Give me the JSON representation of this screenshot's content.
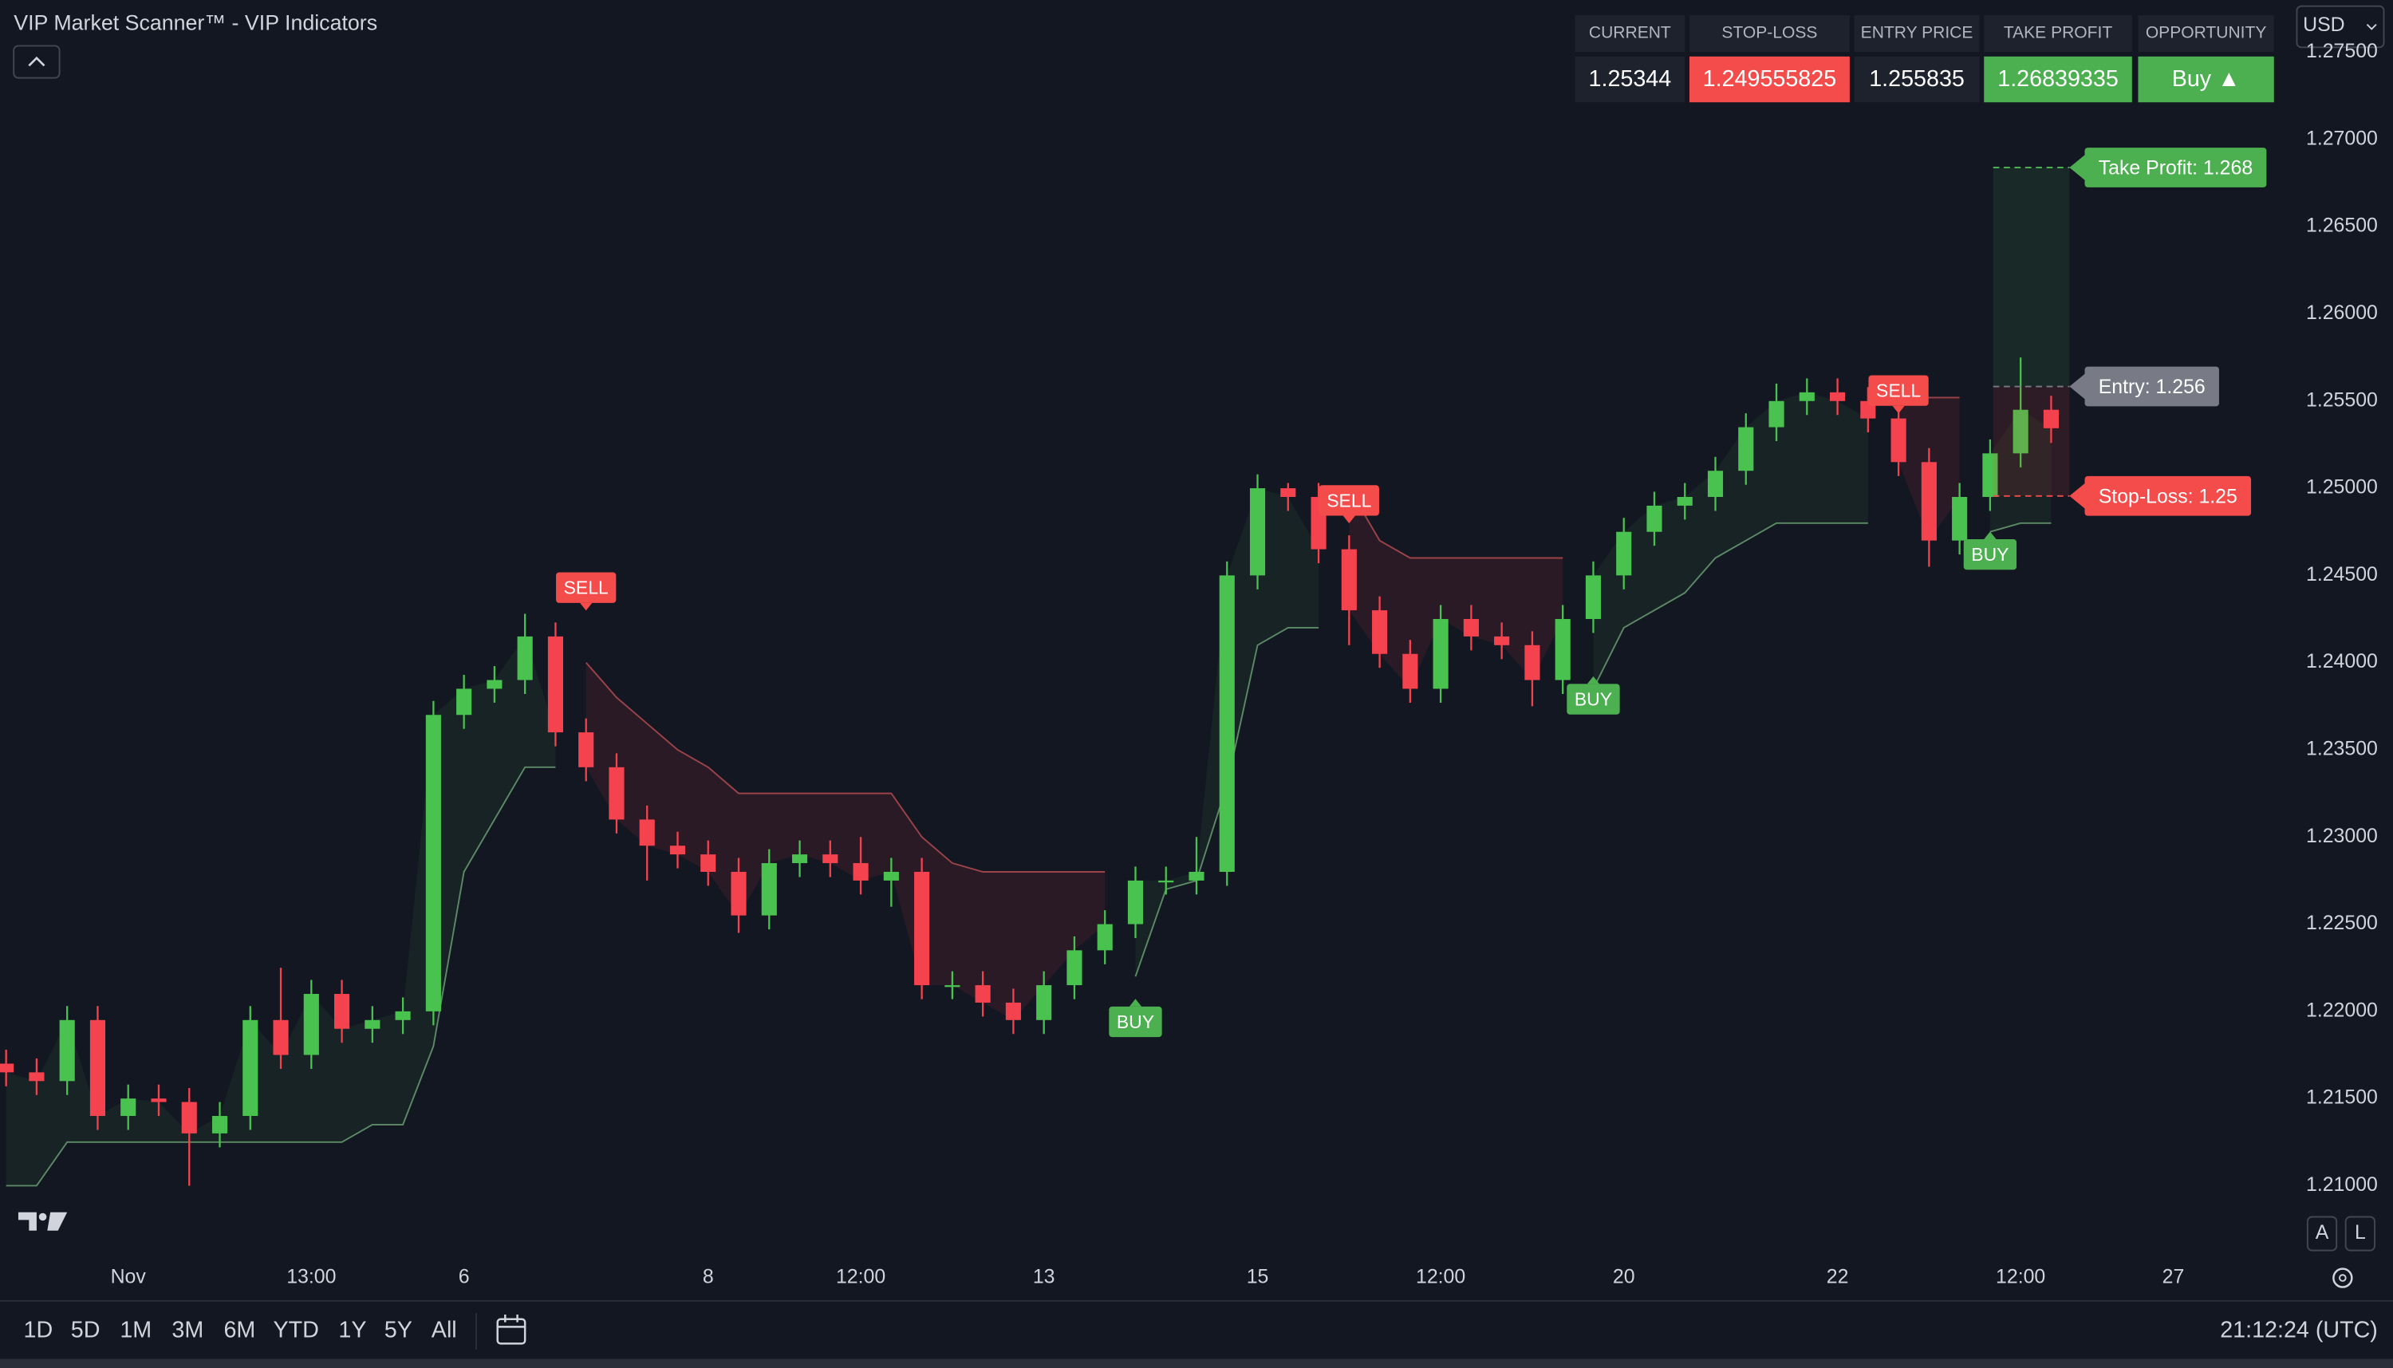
{
  "ui": {
    "title": "VIP Market Scanner™ - VIP Indicators",
    "currency": "USD",
    "timeframes": [
      "1D",
      "5D",
      "1M",
      "3M",
      "6M",
      "YTD",
      "1Y",
      "5Y",
      "All"
    ],
    "clock": "21:12:24 (UTC)",
    "auto_button": "A",
    "log_button": "L"
  },
  "panel": {
    "headers": [
      "CURRENT",
      "STOP-LOSS",
      "ENTRY PRICE",
      "TAKE PROFIT",
      "OPPORTUNITY"
    ],
    "opportunity": "Buy ▲"
  },
  "chart_data": {
    "type": "candlestick",
    "up_color": "#4ac24f",
    "down_color": "#f4434f",
    "grid": false,
    "ylim": [
      1.2062,
      1.278
    ],
    "yticks": [
      {
        "value": 1.21,
        "label": "1.21000"
      },
      {
        "value": 1.215,
        "label": "1.21500"
      },
      {
        "value": 1.22,
        "label": "1.22000"
      },
      {
        "value": 1.225,
        "label": "1.22500"
      },
      {
        "value": 1.23,
        "label": "1.23000"
      },
      {
        "value": 1.235,
        "label": "1.23500"
      },
      {
        "value": 1.24,
        "label": "1.24000"
      },
      {
        "value": 1.245,
        "label": "1.24500"
      },
      {
        "value": 1.25,
        "label": "1.25000"
      },
      {
        "value": 1.255,
        "label": "1.25500"
      },
      {
        "value": 1.26,
        "label": "1.26000"
      },
      {
        "value": 1.265,
        "label": "1.26500"
      },
      {
        "value": 1.27,
        "label": "1.27000"
      },
      {
        "value": 1.275,
        "label": "1.27500"
      }
    ],
    "categories": [
      null,
      null,
      null,
      null,
      "Nov",
      null,
      null,
      null,
      null,
      null,
      "13:00",
      null,
      null,
      null,
      null,
      "6",
      null,
      null,
      null,
      null,
      null,
      null,
      null,
      "8",
      null,
      null,
      null,
      null,
      "12:00",
      null,
      null,
      null,
      null,
      null,
      "13",
      null,
      null,
      null,
      null,
      null,
      null,
      "15",
      null,
      null,
      null,
      null,
      null,
      "12:00",
      null,
      null,
      null,
      null,
      null,
      "20",
      null,
      null,
      null,
      null,
      null,
      null,
      "22",
      null,
      null,
      null,
      null,
      null,
      "12:00",
      null,
      null,
      null,
      null,
      "27"
    ],
    "open": [
      1.217,
      1.2165,
      1.216,
      1.2195,
      1.214,
      1.215,
      1.2148,
      1.213,
      1.214,
      1.2195,
      1.2175,
      1.221,
      1.219,
      1.2195,
      1.22,
      1.237,
      1.2385,
      1.239,
      1.2415,
      1.236,
      1.234,
      1.231,
      1.2295,
      1.229,
      1.228,
      1.2255,
      1.2285,
      1.229,
      1.2285,
      1.2275,
      1.228,
      1.2215,
      1.2215,
      1.2205,
      1.2195,
      1.2215,
      1.2235,
      1.225,
      1.2275,
      1.2275,
      1.228,
      1.245,
      1.25,
      1.2495,
      1.2465,
      1.243,
      1.2405,
      1.2385,
      1.2425,
      1.2415,
      1.241,
      1.239,
      1.2425,
      1.245,
      1.2475,
      1.249,
      1.2495,
      1.251,
      1.2535,
      1.255,
      1.2555,
      1.255,
      1.254,
      1.2515,
      1.247,
      1.2495,
      1.252,
      1.2545,
      null,
      null,
      null,
      null
    ],
    "high": [
      1.2178,
      1.2173,
      1.2203,
      1.2203,
      1.2158,
      1.2158,
      1.2156,
      1.2148,
      1.2203,
      1.2225,
      1.2218,
      1.2218,
      1.2203,
      1.2208,
      1.2378,
      1.2393,
      1.2398,
      1.2428,
      1.2423,
      1.2368,
      1.2348,
      1.2318,
      1.2303,
      1.2298,
      1.2288,
      1.2293,
      1.2298,
      1.2298,
      1.23,
      1.2288,
      1.2288,
      1.2223,
      1.2223,
      1.2213,
      1.2223,
      1.2243,
      1.2258,
      1.2283,
      1.2283,
      1.23,
      1.2458,
      1.2508,
      1.2503,
      1.2503,
      1.2473,
      1.2438,
      1.2413,
      1.2433,
      1.2433,
      1.2423,
      1.2418,
      1.2433,
      1.2458,
      1.2483,
      1.2498,
      1.2503,
      1.2518,
      1.2543,
      1.256,
      1.2563,
      1.2563,
      1.2558,
      1.2548,
      1.2523,
      1.2503,
      1.2528,
      1.2575,
      1.2553,
      null,
      null,
      null,
      null
    ],
    "low": [
      1.2157,
      1.2152,
      1.2152,
      1.2132,
      1.2132,
      1.214,
      1.21,
      1.2122,
      1.2132,
      1.2167,
      1.2167,
      1.2182,
      1.2182,
      1.2187,
      1.2192,
      1.2362,
      1.2377,
      1.2382,
      1.2352,
      1.2332,
      1.2302,
      1.2275,
      1.2282,
      1.2272,
      1.2245,
      1.2247,
      1.2277,
      1.2277,
      1.2267,
      1.226,
      1.2207,
      1.2207,
      1.2197,
      1.2187,
      1.2187,
      1.2207,
      1.2227,
      1.2242,
      1.2267,
      1.2267,
      1.2272,
      1.2442,
      1.2487,
      1.2457,
      1.241,
      1.2397,
      1.2377,
      1.2377,
      1.2407,
      1.2402,
      1.2375,
      1.2382,
      1.2417,
      1.2442,
      1.2467,
      1.2482,
      1.2487,
      1.2502,
      1.2527,
      1.2542,
      1.2542,
      1.2532,
      1.2507,
      1.2455,
      1.2462,
      1.2487,
      1.2512,
      1.2526,
      null,
      null,
      null,
      null
    ],
    "close": [
      1.2165,
      1.216,
      1.2195,
      1.214,
      1.215,
      1.2148,
      1.213,
      1.214,
      1.2195,
      1.2175,
      1.221,
      1.219,
      1.2195,
      1.22,
      1.237,
      1.2385,
      1.239,
      1.2415,
      1.236,
      1.234,
      1.231,
      1.2295,
      1.229,
      1.228,
      1.2255,
      1.2285,
      1.229,
      1.2285,
      1.2275,
      1.228,
      1.2215,
      1.2215,
      1.2205,
      1.2195,
      1.2215,
      1.2235,
      1.225,
      1.2275,
      1.2275,
      1.228,
      1.245,
      1.25,
      1.2495,
      1.2465,
      1.243,
      1.2405,
      1.2385,
      1.2425,
      1.2415,
      1.241,
      1.239,
      1.2425,
      1.245,
      1.2475,
      1.249,
      1.2495,
      1.251,
      1.2535,
      1.255,
      1.2555,
      1.255,
      1.254,
      1.2515,
      1.247,
      1.2495,
      1.252,
      1.2545,
      1.25344,
      null,
      null,
      null,
      null
    ],
    "support": {
      "color": "#5d8a66",
      "fill": "rgba(76,175,80,0.08)",
      "values": [
        1.21,
        1.21,
        1.2125,
        1.2125,
        1.2125,
        1.2125,
        1.2125,
        1.2125,
        1.2125,
        1.2125,
        1.2125,
        1.2125,
        1.2135,
        1.2135,
        1.218,
        1.228,
        1.231,
        1.234,
        1.234,
        null,
        null,
        null,
        null,
        null,
        null,
        null,
        null,
        null,
        null,
        null,
        null,
        null,
        null,
        null,
        null,
        null,
        null,
        1.222,
        1.227,
        1.2275,
        1.233,
        1.241,
        1.242,
        1.242,
        null,
        null,
        null,
        null,
        null,
        null,
        null,
        null,
        1.2385,
        1.242,
        1.243,
        1.244,
        1.246,
        1.247,
        1.248,
        1.248,
        1.248,
        1.248,
        null,
        null,
        null,
        1.2475,
        1.248,
        1.248,
        null,
        null,
        null,
        null
      ]
    },
    "resistance": {
      "color": "#9c4349",
      "fill": "rgba(242,54,69,0.10)",
      "values": [
        null,
        null,
        null,
        null,
        null,
        null,
        null,
        null,
        null,
        null,
        null,
        null,
        null,
        null,
        null,
        null,
        null,
        null,
        null,
        1.24,
        1.238,
        1.2365,
        1.235,
        1.234,
        1.2325,
        1.2325,
        1.2325,
        1.2325,
        1.2325,
        1.2325,
        1.23,
        1.2285,
        1.228,
        1.228,
        1.228,
        1.228,
        1.228,
        null,
        null,
        null,
        null,
        null,
        null,
        null,
        1.25,
        1.247,
        1.246,
        1.246,
        1.246,
        1.246,
        1.246,
        1.246,
        null,
        null,
        null,
        null,
        null,
        null,
        null,
        null,
        null,
        null,
        1.2555,
        1.2552,
        1.2552,
        null,
        null,
        null,
        null,
        null,
        null,
        null
      ]
    },
    "signals": [
      {
        "label": "SELL",
        "index": 19,
        "price": 1.2443,
        "color": "#f44b4b"
      },
      {
        "label": "BUY",
        "index": 37,
        "price": 1.2194,
        "color": "#4caf50"
      },
      {
        "label": "SELL",
        "index": 44,
        "price": 1.2493,
        "color": "#f44b4b"
      },
      {
        "label": "BUY",
        "index": 52,
        "price": 1.2379,
        "color": "#4caf50"
      },
      {
        "label": "SELL",
        "index": 62,
        "price": 1.2556,
        "color": "#f44b4b"
      },
      {
        "label": "BUY",
        "index": 65,
        "price": 1.2462,
        "color": "#4caf50"
      }
    ],
    "trade": {
      "take_profit": {
        "label": "Take Profit: 1.268",
        "value": 1.26839335,
        "color": "#4caf50"
      },
      "entry": {
        "label": "Entry: 1.256",
        "value": 1.255835,
        "color": "#787b86"
      },
      "stop_loss": {
        "label": "Stop-Loss: 1.25",
        "value": 1.249555825,
        "color": "#f44b4b"
      }
    }
  }
}
